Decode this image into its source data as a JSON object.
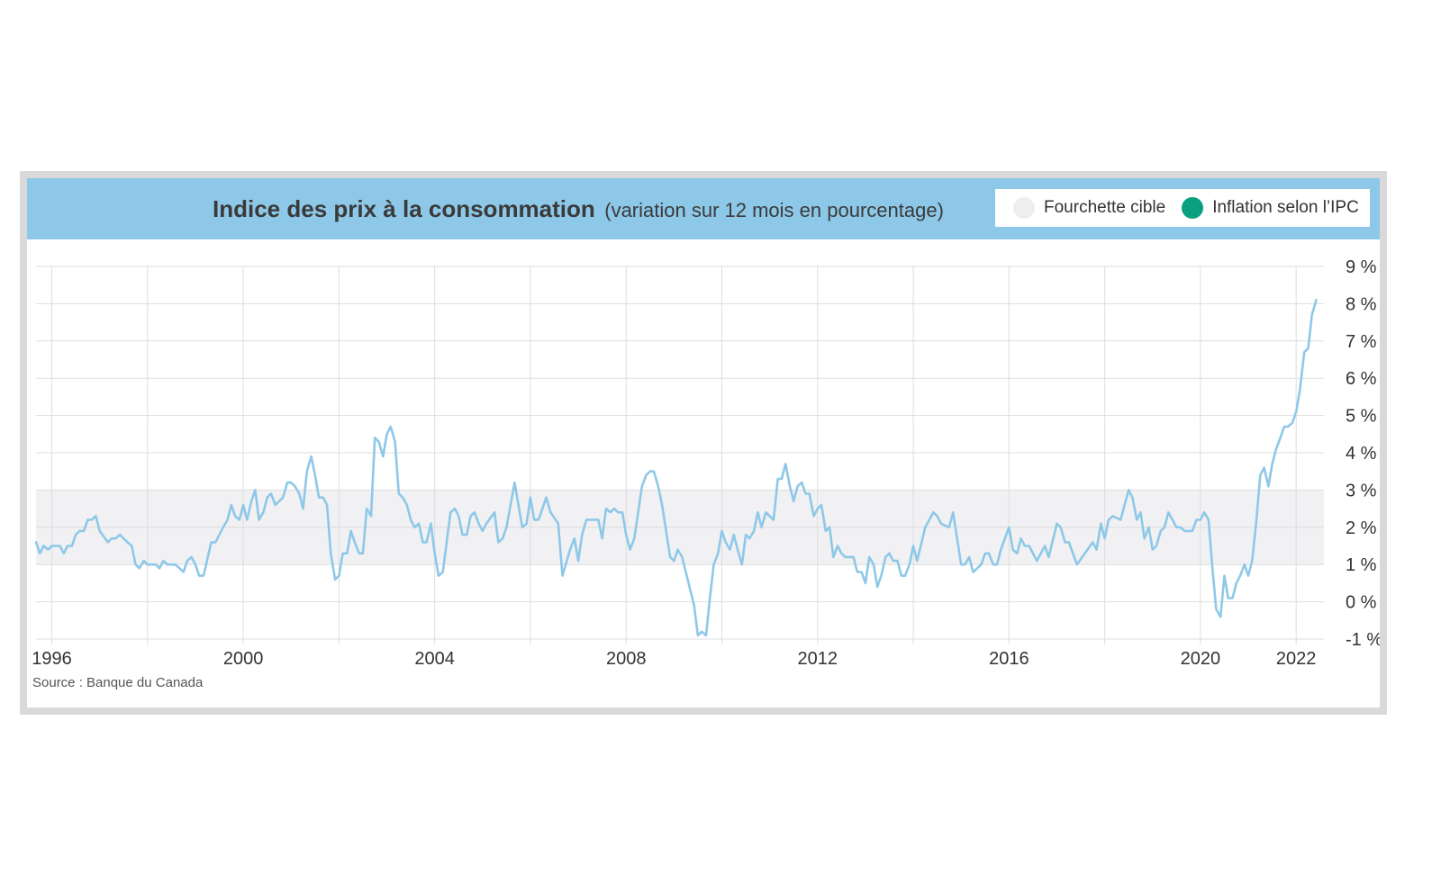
{
  "chart_data": {
    "type": "line",
    "title": "Indice des prix à la consommation",
    "subtitle": "(variation sur 12 mois en pourcentage)",
    "source": "Source : Banque du Canada",
    "legend": {
      "placement": "top-right",
      "target_band_label": "Fourchette cible",
      "series_label": "Inflation selon l’IPC"
    },
    "colors": {
      "banner": "#8ec8e8",
      "line": "#8ec8e8",
      "band": "#f1f1f3",
      "band_swatch": "#eeeeee",
      "series_swatch": "#0a9f7e",
      "grid": "#dddddd"
    },
    "target_band": [
      1,
      3
    ],
    "xlim": [
      1995.67,
      2022.58
    ],
    "ylim": [
      -1,
      9
    ],
    "y_ticks": [
      {
        "value": 9,
        "label": "9 %"
      },
      {
        "value": 8,
        "label": "8 %"
      },
      {
        "value": 7,
        "label": "7 %"
      },
      {
        "value": 6,
        "label": "6 %"
      },
      {
        "value": 5,
        "label": "5 %"
      },
      {
        "value": 4,
        "label": "4 %"
      },
      {
        "value": 3,
        "label": "3 %"
      },
      {
        "value": 2,
        "label": "2 %"
      },
      {
        "value": 1,
        "label": "1 %"
      },
      {
        "value": 0,
        "label": "0 %"
      },
      {
        "value": -1,
        "label": "-1 %"
      }
    ],
    "x_gridlines": [
      1996,
      1998,
      2000,
      2002,
      2004,
      2006,
      2008,
      2010,
      2012,
      2014,
      2016,
      2018,
      2020,
      2022
    ],
    "x_tick_labels": [
      {
        "value": 1996,
        "label": "1996"
      },
      {
        "value": 2000,
        "label": "2000"
      },
      {
        "value": 2004,
        "label": "2004"
      },
      {
        "value": 2008,
        "label": "2008"
      },
      {
        "value": 2012,
        "label": "2012"
      },
      {
        "value": 2016,
        "label": "2016"
      },
      {
        "value": 2020,
        "label": "2020"
      },
      {
        "value": 2022,
        "label": "2022"
      }
    ],
    "series": [
      {
        "name": "Inflation selon l’IPC",
        "points": [
          [
            1995.67,
            1.6
          ],
          [
            1995.75,
            1.3
          ],
          [
            1995.83,
            1.5
          ],
          [
            1995.92,
            1.4
          ],
          [
            1996.0,
            1.5
          ],
          [
            1996.17,
            1.5
          ],
          [
            1996.25,
            1.3
          ],
          [
            1996.33,
            1.5
          ],
          [
            1996.42,
            1.5
          ],
          [
            1996.5,
            1.8
          ],
          [
            1996.58,
            1.9
          ],
          [
            1996.67,
            1.9
          ],
          [
            1996.75,
            2.2
          ],
          [
            1996.83,
            2.2
          ],
          [
            1996.92,
            2.3
          ],
          [
            1997.0,
            1.9
          ],
          [
            1997.17,
            1.6
          ],
          [
            1997.25,
            1.7
          ],
          [
            1997.33,
            1.7
          ],
          [
            1997.42,
            1.8
          ],
          [
            1997.58,
            1.6
          ],
          [
            1997.67,
            1.5
          ],
          [
            1997.75,
            1.0
          ],
          [
            1997.83,
            0.9
          ],
          [
            1997.92,
            1.1
          ],
          [
            1998.0,
            1.0
          ],
          [
            1998.17,
            1.0
          ],
          [
            1998.25,
            0.9
          ],
          [
            1998.33,
            1.1
          ],
          [
            1998.42,
            1.0
          ],
          [
            1998.58,
            1.0
          ],
          [
            1998.67,
            0.9
          ],
          [
            1998.75,
            0.8
          ],
          [
            1998.83,
            1.1
          ],
          [
            1998.92,
            1.2
          ],
          [
            1999.0,
            1.0
          ],
          [
            1999.08,
            0.7
          ],
          [
            1999.17,
            0.7
          ],
          [
            1999.33,
            1.6
          ],
          [
            1999.42,
            1.6
          ],
          [
            1999.5,
            1.8
          ],
          [
            1999.58,
            2.0
          ],
          [
            1999.67,
            2.2
          ],
          [
            1999.75,
            2.6
          ],
          [
            1999.83,
            2.3
          ],
          [
            1999.92,
            2.2
          ],
          [
            2000.0,
            2.6
          ],
          [
            2000.08,
            2.2
          ],
          [
            2000.17,
            2.7
          ],
          [
            2000.25,
            3.0
          ],
          [
            2000.33,
            2.2
          ],
          [
            2000.42,
            2.4
          ],
          [
            2000.5,
            2.8
          ],
          [
            2000.58,
            2.9
          ],
          [
            2000.67,
            2.6
          ],
          [
            2000.75,
            2.7
          ],
          [
            2000.83,
            2.8
          ],
          [
            2000.92,
            3.2
          ],
          [
            2001.0,
            3.2
          ],
          [
            2001.08,
            3.1
          ],
          [
            2001.17,
            2.9
          ],
          [
            2001.25,
            2.5
          ],
          [
            2001.33,
            3.5
          ],
          [
            2001.42,
            3.9
          ],
          [
            2001.5,
            3.4
          ],
          [
            2001.58,
            2.8
          ],
          [
            2001.67,
            2.8
          ],
          [
            2001.75,
            2.6
          ],
          [
            2001.83,
            1.3
          ],
          [
            2001.92,
            0.6
          ],
          [
            2002.0,
            0.7
          ],
          [
            2002.08,
            1.3
          ],
          [
            2002.17,
            1.3
          ],
          [
            2002.25,
            1.9
          ],
          [
            2002.33,
            1.6
          ],
          [
            2002.42,
            1.3
          ],
          [
            2002.5,
            1.3
          ],
          [
            2002.58,
            2.5
          ],
          [
            2002.67,
            2.3
          ],
          [
            2002.75,
            4.4
          ],
          [
            2002.83,
            4.3
          ],
          [
            2002.92,
            3.9
          ],
          [
            2003.0,
            4.5
          ],
          [
            2003.08,
            4.7
          ],
          [
            2003.17,
            4.3
          ],
          [
            2003.25,
            2.9
          ],
          [
            2003.33,
            2.8
          ],
          [
            2003.42,
            2.6
          ],
          [
            2003.5,
            2.2
          ],
          [
            2003.58,
            2.0
          ],
          [
            2003.67,
            2.1
          ],
          [
            2003.75,
            1.6
          ],
          [
            2003.83,
            1.6
          ],
          [
            2003.92,
            2.1
          ],
          [
            2004.0,
            1.3
          ],
          [
            2004.08,
            0.7
          ],
          [
            2004.17,
            0.8
          ],
          [
            2004.33,
            2.4
          ],
          [
            2004.42,
            2.5
          ],
          [
            2004.5,
            2.3
          ],
          [
            2004.58,
            1.8
          ],
          [
            2004.67,
            1.8
          ],
          [
            2004.75,
            2.3
          ],
          [
            2004.83,
            2.4
          ],
          [
            2004.92,
            2.1
          ],
          [
            2005.0,
            1.9
          ],
          [
            2005.08,
            2.1
          ],
          [
            2005.25,
            2.4
          ],
          [
            2005.33,
            1.6
          ],
          [
            2005.42,
            1.7
          ],
          [
            2005.5,
            2.0
          ],
          [
            2005.67,
            3.2
          ],
          [
            2005.83,
            2.0
          ],
          [
            2005.92,
            2.1
          ],
          [
            2006.0,
            2.8
          ],
          [
            2006.08,
            2.2
          ],
          [
            2006.17,
            2.2
          ],
          [
            2006.33,
            2.8
          ],
          [
            2006.42,
            2.4
          ],
          [
            2006.58,
            2.1
          ],
          [
            2006.67,
            0.7
          ],
          [
            2006.83,
            1.4
          ],
          [
            2006.92,
            1.7
          ],
          [
            2007.0,
            1.1
          ],
          [
            2007.08,
            1.8
          ],
          [
            2007.17,
            2.2
          ],
          [
            2007.25,
            2.2
          ],
          [
            2007.42,
            2.2
          ],
          [
            2007.5,
            1.7
          ],
          [
            2007.58,
            2.5
          ],
          [
            2007.67,
            2.4
          ],
          [
            2007.75,
            2.5
          ],
          [
            2007.83,
            2.4
          ],
          [
            2007.92,
            2.4
          ],
          [
            2008.0,
            1.8
          ],
          [
            2008.08,
            1.4
          ],
          [
            2008.17,
            1.7
          ],
          [
            2008.33,
            3.1
          ],
          [
            2008.42,
            3.4
          ],
          [
            2008.5,
            3.5
          ],
          [
            2008.58,
            3.5
          ],
          [
            2008.67,
            3.1
          ],
          [
            2008.75,
            2.6
          ],
          [
            2008.92,
            1.2
          ],
          [
            2009.0,
            1.1
          ],
          [
            2009.08,
            1.4
          ],
          [
            2009.17,
            1.2
          ],
          [
            2009.42,
            -0.1
          ],
          [
            2009.5,
            -0.9
          ],
          [
            2009.58,
            -0.8
          ],
          [
            2009.67,
            -0.9
          ],
          [
            2009.75,
            0.1
          ],
          [
            2009.83,
            1.0
          ],
          [
            2009.92,
            1.3
          ],
          [
            2010.0,
            1.9
          ],
          [
            2010.08,
            1.6
          ],
          [
            2010.17,
            1.4
          ],
          [
            2010.25,
            1.8
          ],
          [
            2010.33,
            1.4
          ],
          [
            2010.42,
            1.0
          ],
          [
            2010.5,
            1.8
          ],
          [
            2010.58,
            1.7
          ],
          [
            2010.67,
            1.9
          ],
          [
            2010.75,
            2.4
          ],
          [
            2010.83,
            2.0
          ],
          [
            2010.92,
            2.4
          ],
          [
            2011.0,
            2.3
          ],
          [
            2011.08,
            2.2
          ],
          [
            2011.17,
            3.3
          ],
          [
            2011.25,
            3.3
          ],
          [
            2011.33,
            3.7
          ],
          [
            2011.42,
            3.1
          ],
          [
            2011.5,
            2.7
          ],
          [
            2011.58,
            3.1
          ],
          [
            2011.67,
            3.2
          ],
          [
            2011.75,
            2.9
          ],
          [
            2011.83,
            2.9
          ],
          [
            2011.92,
            2.3
          ],
          [
            2012.0,
            2.5
          ],
          [
            2012.08,
            2.6
          ],
          [
            2012.17,
            1.9
          ],
          [
            2012.25,
            2.0
          ],
          [
            2012.33,
            1.2
          ],
          [
            2012.42,
            1.5
          ],
          [
            2012.5,
            1.3
          ],
          [
            2012.58,
            1.2
          ],
          [
            2012.67,
            1.2
          ],
          [
            2012.75,
            1.2
          ],
          [
            2012.83,
            0.8
          ],
          [
            2012.92,
            0.8
          ],
          [
            2013.0,
            0.5
          ],
          [
            2013.08,
            1.2
          ],
          [
            2013.17,
            1.0
          ],
          [
            2013.25,
            0.4
          ],
          [
            2013.33,
            0.7
          ],
          [
            2013.42,
            1.2
          ],
          [
            2013.5,
            1.3
          ],
          [
            2013.58,
            1.1
          ],
          [
            2013.67,
            1.1
          ],
          [
            2013.75,
            0.7
          ],
          [
            2013.83,
            0.7
          ],
          [
            2013.92,
            1.0
          ],
          [
            2014.0,
            1.5
          ],
          [
            2014.08,
            1.1
          ],
          [
            2014.25,
            2.0
          ],
          [
            2014.42,
            2.4
          ],
          [
            2014.5,
            2.3
          ],
          [
            2014.58,
            2.1
          ],
          [
            2014.75,
            2.0
          ],
          [
            2014.83,
            2.4
          ],
          [
            2015.0,
            1.0
          ],
          [
            2015.08,
            1.0
          ],
          [
            2015.17,
            1.2
          ],
          [
            2015.25,
            0.8
          ],
          [
            2015.42,
            1.0
          ],
          [
            2015.5,
            1.3
          ],
          [
            2015.58,
            1.3
          ],
          [
            2015.67,
            1.0
          ],
          [
            2015.75,
            1.0
          ],
          [
            2015.83,
            1.4
          ],
          [
            2016.0,
            2.0
          ],
          [
            2016.08,
            1.4
          ],
          [
            2016.17,
            1.3
          ],
          [
            2016.25,
            1.7
          ],
          [
            2016.33,
            1.5
          ],
          [
            2016.42,
            1.5
          ],
          [
            2016.58,
            1.1
          ],
          [
            2016.75,
            1.5
          ],
          [
            2016.83,
            1.2
          ],
          [
            2017.0,
            2.1
          ],
          [
            2017.08,
            2.0
          ],
          [
            2017.17,
            1.6
          ],
          [
            2017.25,
            1.6
          ],
          [
            2017.42,
            1.0
          ],
          [
            2017.75,
            1.6
          ],
          [
            2017.83,
            1.4
          ],
          [
            2017.92,
            2.1
          ],
          [
            2018.0,
            1.7
          ],
          [
            2018.08,
            2.2
          ],
          [
            2018.17,
            2.3
          ],
          [
            2018.33,
            2.2
          ],
          [
            2018.5,
            3.0
          ],
          [
            2018.58,
            2.8
          ],
          [
            2018.67,
            2.2
          ],
          [
            2018.75,
            2.4
          ],
          [
            2018.83,
            1.7
          ],
          [
            2018.92,
            2.0
          ],
          [
            2019.0,
            1.4
          ],
          [
            2019.08,
            1.5
          ],
          [
            2019.17,
            1.9
          ],
          [
            2019.25,
            2.0
          ],
          [
            2019.33,
            2.4
          ],
          [
            2019.5,
            2.0
          ],
          [
            2019.58,
            2.0
          ],
          [
            2019.67,
            1.9
          ],
          [
            2019.83,
            1.9
          ],
          [
            2019.92,
            2.2
          ],
          [
            2020.0,
            2.2
          ],
          [
            2020.08,
            2.4
          ],
          [
            2020.17,
            2.2
          ],
          [
            2020.25,
            0.9
          ],
          [
            2020.33,
            -0.2
          ],
          [
            2020.42,
            -0.4
          ],
          [
            2020.5,
            0.7
          ],
          [
            2020.58,
            0.1
          ],
          [
            2020.67,
            0.1
          ],
          [
            2020.75,
            0.5
          ],
          [
            2020.83,
            0.7
          ],
          [
            2020.92,
            1.0
          ],
          [
            2021.0,
            0.7
          ],
          [
            2021.08,
            1.1
          ],
          [
            2021.17,
            2.2
          ],
          [
            2021.25,
            3.4
          ],
          [
            2021.33,
            3.6
          ],
          [
            2021.42,
            3.1
          ],
          [
            2021.5,
            3.7
          ],
          [
            2021.58,
            4.1
          ],
          [
            2021.67,
            4.4
          ],
          [
            2021.75,
            4.7
          ],
          [
            2021.83,
            4.7
          ],
          [
            2021.92,
            4.8
          ],
          [
            2022.0,
            5.1
          ],
          [
            2022.08,
            5.7
          ],
          [
            2022.17,
            6.7
          ],
          [
            2022.25,
            6.8
          ],
          [
            2022.33,
            7.7
          ],
          [
            2022.42,
            8.1
          ]
        ]
      }
    ]
  }
}
